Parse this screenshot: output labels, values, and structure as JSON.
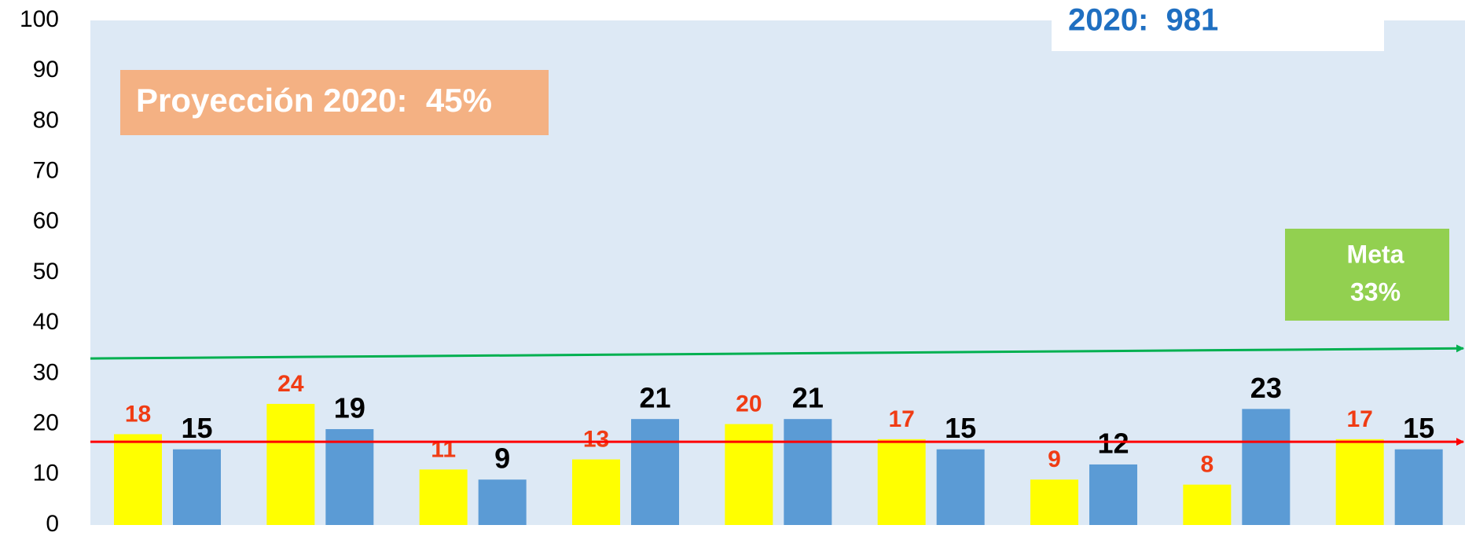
{
  "chart_data": {
    "type": "bar",
    "categories": [
      null,
      null,
      null,
      null,
      null,
      null,
      null,
      null,
      null
    ],
    "series": [
      {
        "color": "#ffff00",
        "label_color": "#f03c14",
        "values": [
          18,
          24,
          11,
          13,
          20,
          17,
          9,
          8,
          17
        ]
      },
      {
        "color": "#5b9bd5",
        "label_color": "#000000",
        "values": [
          15,
          19,
          9,
          21,
          21,
          15,
          12,
          23,
          15
        ]
      }
    ],
    "lines": [
      {
        "color": "#00b050",
        "values": [
          33,
          35
        ]
      },
      {
        "color": "#ff0000",
        "values": [
          16.5,
          16.5
        ]
      }
    ],
    "annotations": [
      "Proyección 2020:  45%",
      "2020:  981",
      "Meta",
      "33%"
    ],
    "ylim": [
      0,
      100
    ],
    "yticks": [
      0,
      10,
      20,
      30,
      40,
      50,
      60,
      70,
      80,
      90,
      100
    ]
  }
}
